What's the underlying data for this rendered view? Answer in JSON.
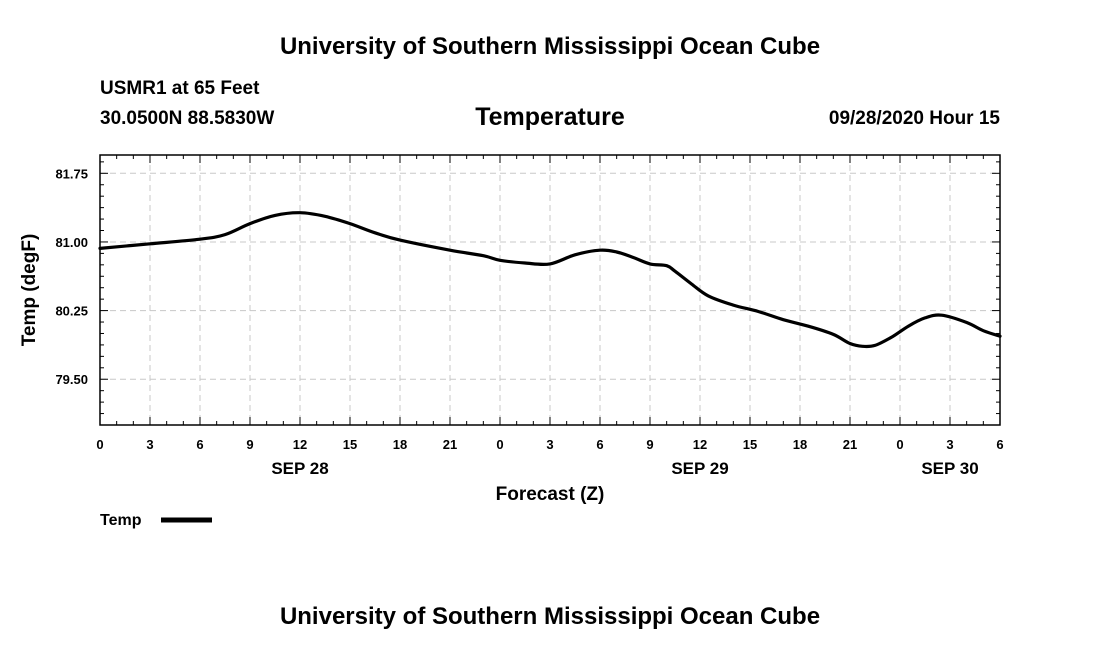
{
  "header": {
    "title_top": "University of Southern Mississippi Ocean Cube",
    "station": "USMR1 at 65 Feet",
    "location": "30.0500N 88.5830W",
    "timestamp": "09/28/2020 Hour 15"
  },
  "footer": {
    "title_bottom": "University of Southern Mississippi Ocean Cube"
  },
  "chart_data": {
    "type": "line",
    "title": "Temperature",
    "xlabel": "Forecast (Z)",
    "ylabel": "Temp (degF)",
    "x_unit": "hours from Sep 28 00Z",
    "xlim": [
      0,
      54
    ],
    "ylim": [
      79.0,
      81.95
    ],
    "x_ticks": [
      0,
      3,
      6,
      9,
      12,
      15,
      18,
      21,
      24,
      27,
      30,
      33,
      36,
      39,
      42,
      45,
      48,
      51,
      54
    ],
    "x_tick_labels": [
      "0",
      "3",
      "6",
      "9",
      "12",
      "15",
      "18",
      "21",
      "0",
      "3",
      "6",
      "9",
      "12",
      "15",
      "18",
      "21",
      "0",
      "3",
      "6"
    ],
    "date_labels": [
      {
        "x": 12,
        "label": "SEP 28"
      },
      {
        "x": 36,
        "label": "SEP 29"
      },
      {
        "x": 51,
        "label": "SEP 30"
      }
    ],
    "y_ticks": [
      79.5,
      80.25,
      81.0,
      81.75
    ],
    "y_tick_labels": [
      "79.50",
      "80.25",
      "81.00",
      "81.75"
    ],
    "grid": true,
    "legend": "bottom-left",
    "series": [
      {
        "name": "Temp",
        "color": "#000000",
        "x": [
          0,
          3,
          6,
          7.5,
          9,
          10.5,
          12,
          13.5,
          15,
          16.5,
          18,
          21,
          23,
          24,
          25.5,
          27,
          28.5,
          30,
          31,
          32,
          33,
          34,
          34.5,
          35.5,
          36.5,
          38,
          39.5,
          41,
          42.5,
          44,
          45,
          45.75,
          46.5,
          47.5,
          48.5,
          49.5,
          50.5,
          52,
          53,
          54
        ],
        "values": [
          80.93,
          80.98,
          81.03,
          81.08,
          81.2,
          81.29,
          81.32,
          81.28,
          81.2,
          81.1,
          81.02,
          80.91,
          80.85,
          80.8,
          80.77,
          80.76,
          80.86,
          80.91,
          80.89,
          80.83,
          80.76,
          80.74,
          80.68,
          80.54,
          80.41,
          80.31,
          80.24,
          80.15,
          80.08,
          79.99,
          79.89,
          79.86,
          79.87,
          79.96,
          80.08,
          80.17,
          80.2,
          80.12,
          80.03,
          79.97
        ]
      }
    ]
  }
}
